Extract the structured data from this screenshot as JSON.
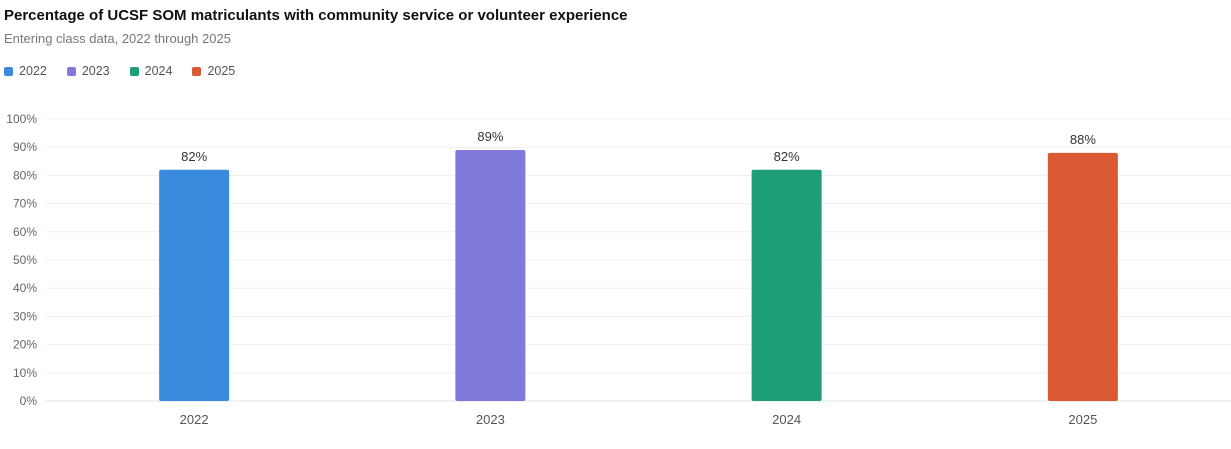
{
  "title": "Percentage of UCSF SOM matriculants with community service or volunteer experience",
  "subtitle": "Entering class data, 2022 through 2025",
  "chart_data": {
    "type": "bar",
    "title": "Percentage of UCSF SOM matriculants with community service or volunteer experience",
    "subtitle": "Entering class data, 2022 through 2025",
    "categories": [
      "2022",
      "2023",
      "2024",
      "2025"
    ],
    "values": [
      82,
      89,
      82,
      88
    ],
    "data_labels": [
      "82%",
      "89%",
      "82%",
      "88%"
    ],
    "colors": [
      "#3a8ade",
      "#8179dc",
      "#1e9e78",
      "#d95a32"
    ],
    "legend": [
      "2022",
      "2023",
      "2024",
      "2025"
    ],
    "legend_position": "top-left",
    "ylim": [
      0,
      100
    ],
    "yticks": [
      "0%",
      "10%",
      "20%",
      "30%",
      "40%",
      "50%",
      "60%",
      "70%",
      "80%",
      "90%",
      "100%"
    ],
    "xlabel": "",
    "ylabel": "",
    "grid": true
  }
}
